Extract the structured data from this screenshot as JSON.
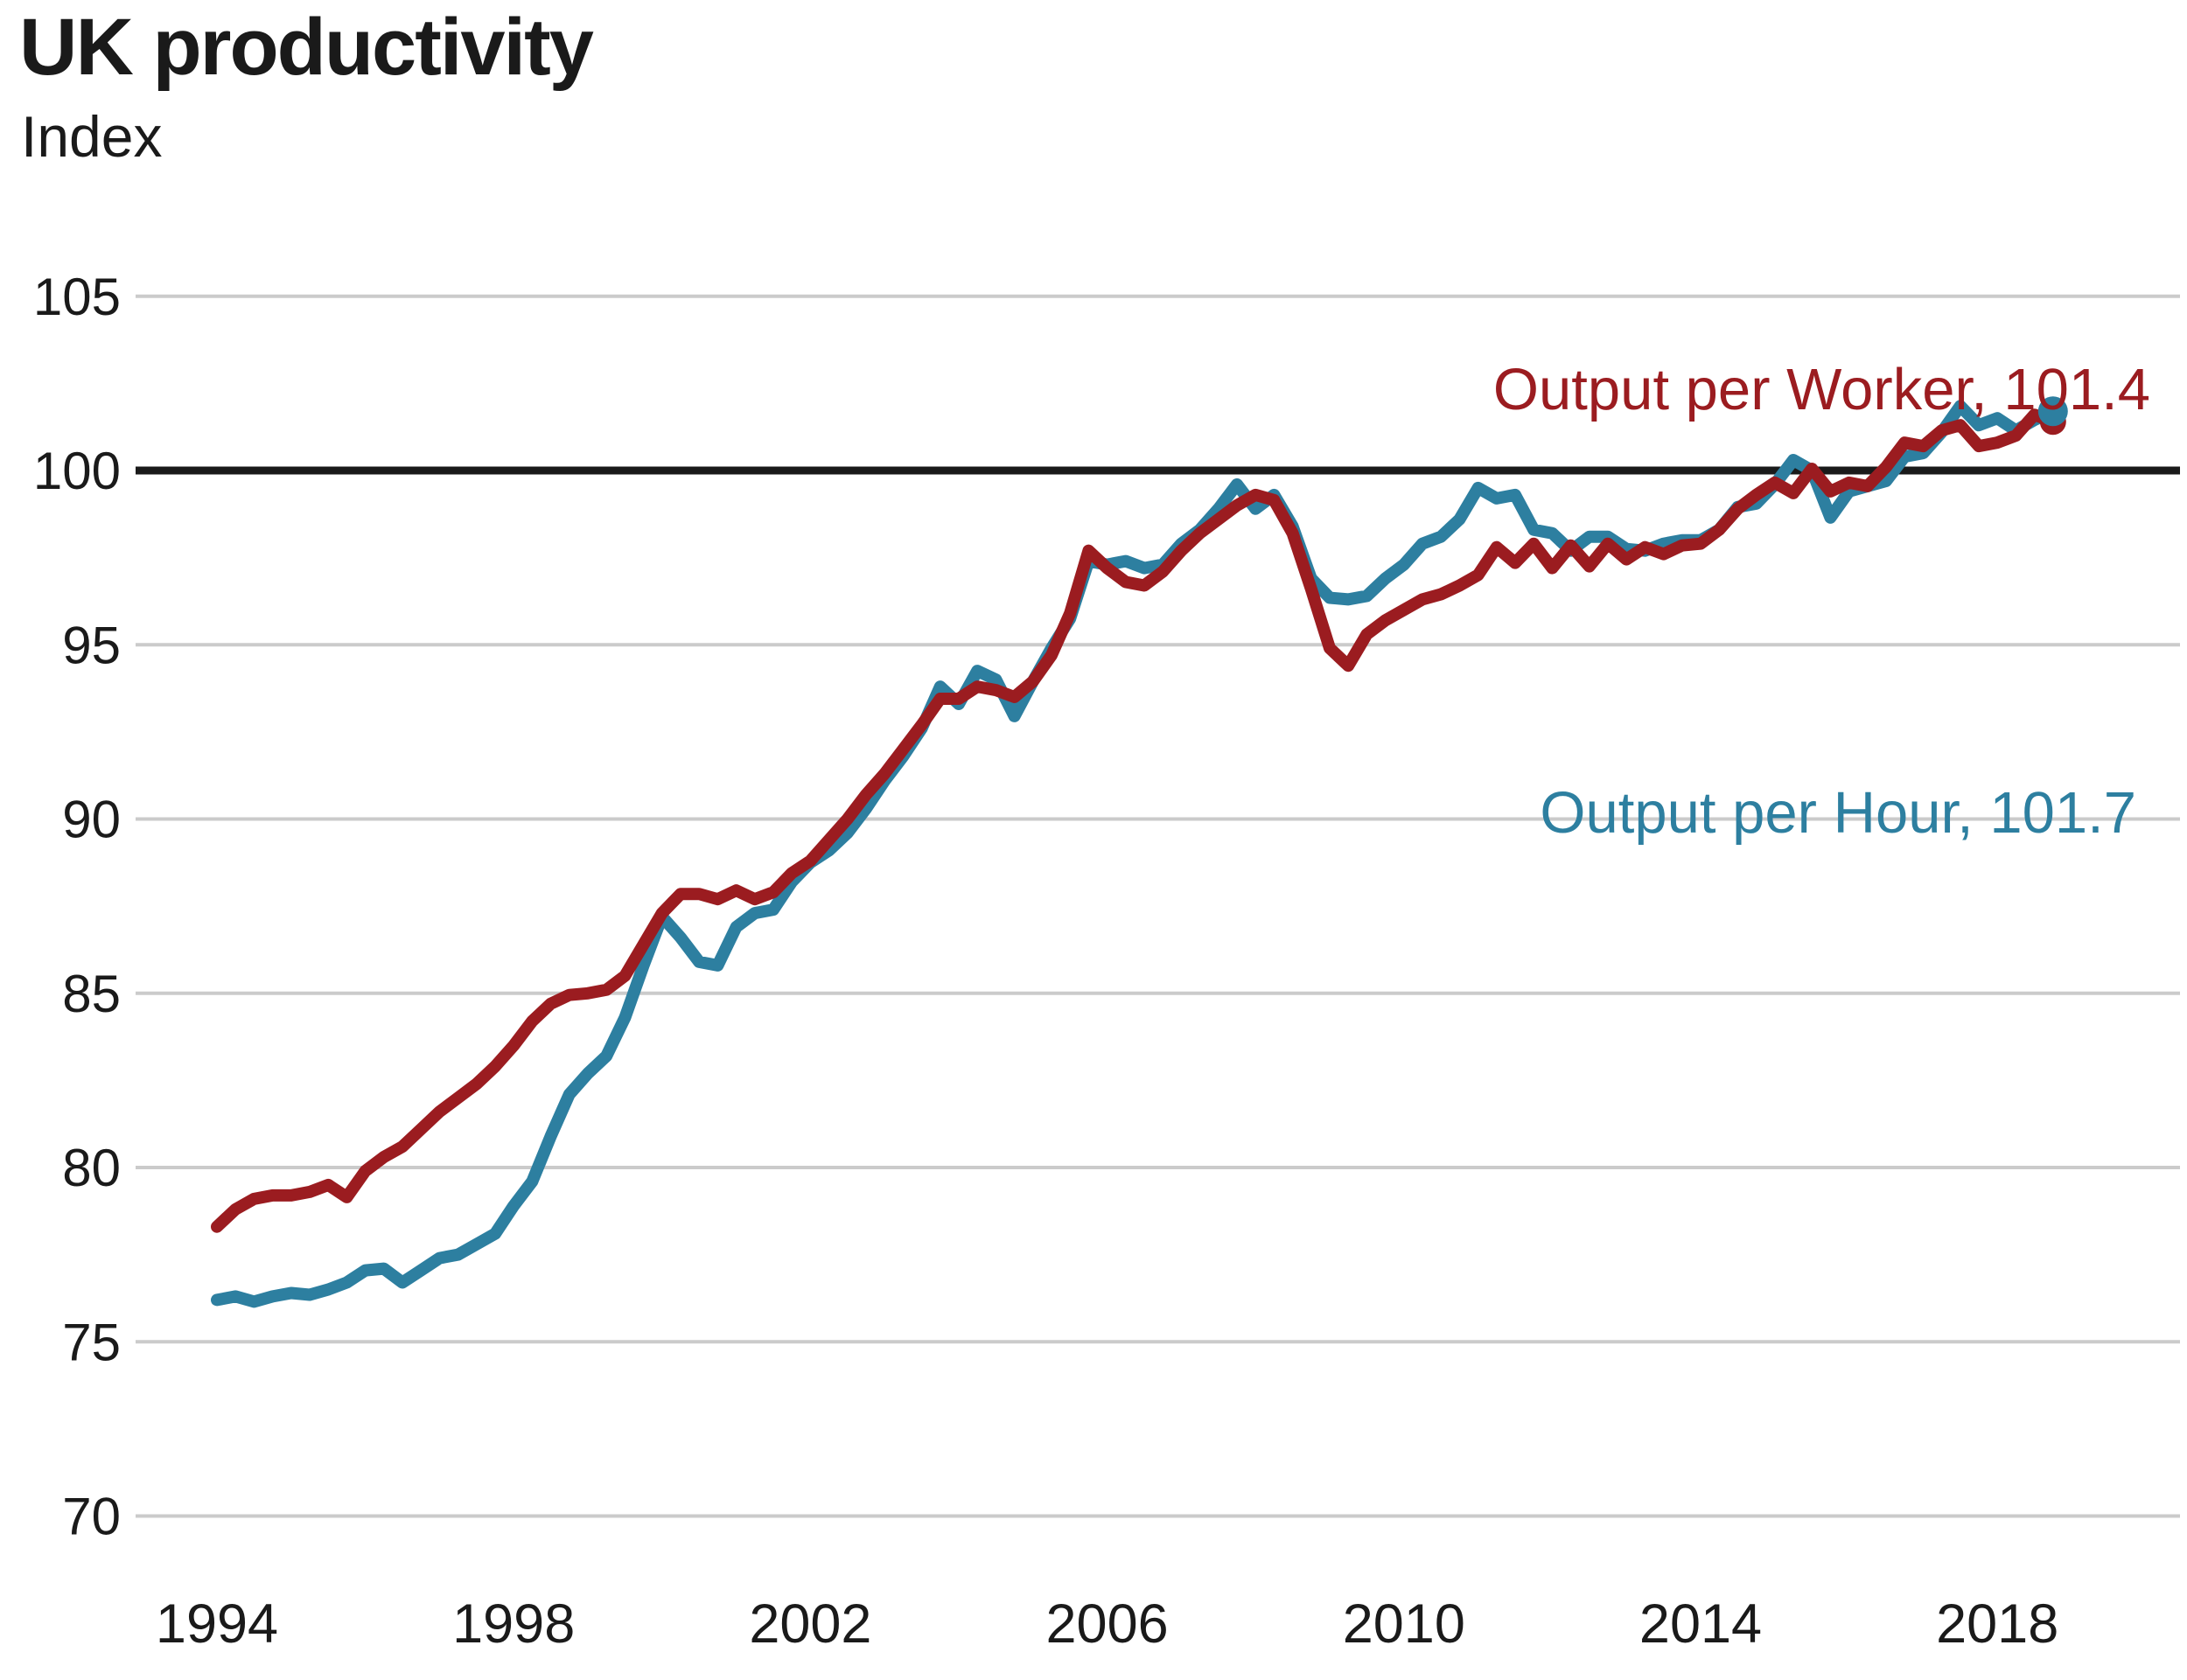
{
  "title": "UK productivity",
  "subtitle": "Index",
  "colors": {
    "worker_red": "#9b1c20",
    "hour_blue": "#2d7fa0",
    "gridline": "#cbcbcb",
    "baseline_black": "#1a1a1a",
    "text": "#1a1a1a"
  },
  "chart_data": {
    "type": "line",
    "title": "UK productivity",
    "ylabel": "Index",
    "grid": "horizontal only",
    "legend_position": "inline annotations on chart",
    "x_start_year": 1994,
    "x_points_per_year": 4,
    "x_tick_years": [
      1994,
      1998,
      2002,
      2006,
      2010,
      2014,
      2018
    ],
    "y_ticks": [
      70,
      75,
      80,
      85,
      90,
      95,
      100,
      105
    ],
    "ylim": [
      68,
      106
    ],
    "baseline_value": 100,
    "series": [
      {
        "name": "Output per Worker",
        "label": "Output per Worker, 101.4",
        "end_value": 101.4,
        "color": "#9b1c20",
        "values": [
          78.3,
          78.8,
          79.1,
          79.2,
          79.2,
          79.3,
          79.5,
          79.15,
          79.9,
          80.3,
          80.6,
          81.1,
          81.6,
          82.0,
          82.4,
          82.9,
          83.5,
          84.2,
          84.7,
          84.95,
          85.0,
          85.1,
          85.5,
          86.4,
          87.3,
          87.85,
          87.85,
          87.7,
          87.95,
          87.7,
          87.9,
          88.45,
          88.8,
          89.4,
          90.0,
          90.7,
          91.3,
          92.0,
          92.7,
          93.45,
          93.45,
          93.8,
          93.7,
          93.5,
          93.95,
          94.7,
          95.9,
          97.7,
          97.2,
          96.8,
          96.7,
          97.1,
          97.7,
          98.2,
          98.6,
          99.0,
          99.3,
          99.15,
          98.2,
          96.6,
          94.9,
          94.4,
          95.3,
          95.7,
          96.0,
          96.3,
          96.45,
          96.7,
          97.0,
          97.8,
          97.35,
          97.9,
          97.2,
          97.85,
          97.25,
          97.9,
          97.45,
          97.8,
          97.6,
          97.85,
          97.9,
          98.3,
          98.9,
          99.3,
          99.65,
          99.35,
          100.05,
          99.4,
          99.65,
          99.55,
          100.1,
          100.8,
          100.7,
          101.15,
          101.3,
          100.7,
          100.8,
          101.0,
          101.6,
          101.4
        ]
      },
      {
        "name": "Output per Hour",
        "label": "Output per Hour, 101.7",
        "end_value": 101.7,
        "color": "#2d7fa0",
        "values": [
          76.2,
          76.3,
          76.15,
          76.3,
          76.4,
          76.35,
          76.5,
          76.7,
          77.05,
          77.1,
          76.7,
          77.05,
          77.4,
          77.5,
          77.8,
          78.1,
          78.9,
          79.6,
          80.9,
          82.1,
          82.7,
          83.2,
          84.3,
          85.8,
          87.2,
          86.6,
          85.9,
          85.8,
          86.9,
          87.3,
          87.4,
          88.2,
          88.75,
          89.1,
          89.6,
          90.3,
          91.1,
          91.8,
          92.6,
          93.8,
          93.3,
          94.25,
          94.0,
          92.95,
          93.95,
          94.9,
          95.75,
          97.4,
          97.3,
          97.4,
          97.2,
          97.3,
          97.9,
          98.3,
          98.9,
          99.6,
          98.9,
          99.3,
          98.4,
          96.9,
          96.35,
          96.3,
          96.4,
          96.9,
          97.3,
          97.9,
          98.1,
          98.6,
          99.5,
          99.2,
          99.3,
          98.3,
          98.2,
          97.7,
          98.1,
          98.1,
          97.75,
          97.7,
          97.9,
          98.0,
          98.0,
          98.3,
          98.95,
          99.05,
          99.6,
          100.3,
          100.0,
          98.65,
          99.4,
          99.55,
          99.7,
          100.4,
          100.5,
          101.1,
          101.85,
          101.3,
          101.5,
          101.15,
          101.45,
          101.7
        ]
      }
    ]
  }
}
